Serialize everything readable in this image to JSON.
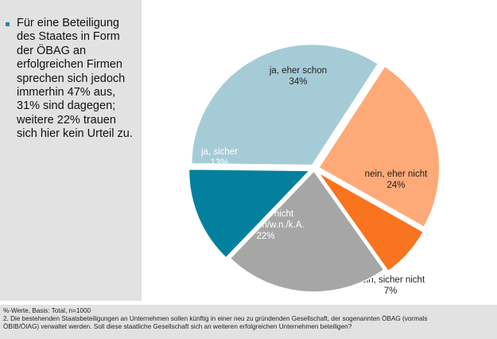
{
  "sidebar": {
    "bullet_lines": [
      "Für eine Beteiligung",
      "des Staates in Form",
      "der ÖBAG an",
      "erfolgreichen Firmen",
      "sprechen sich jedoch",
      "immerhin 47% aus,",
      "31% sind dagegen;",
      "weitere 22% trauen",
      "sich hier kein Urteil zu."
    ]
  },
  "footer": {
    "basis": "%-Werte, Basis: Total, n=1000",
    "question_line1": "2. Die bestehenden Staatsbeteiligungen an Unternehmen sollen künftig in einer neu zu gründenden Gesellschaft, der sogenannten ÖBAG (vormals",
    "question_line2": "ÖBIB/ÖIAG) verwaltet werden. Soll diese staatliche Gesellschaft sich an weiteren erfolgreichen Unternehmen beteiligen?"
  },
  "chart_data": {
    "type": "pie",
    "title": "",
    "slices": [
      {
        "label": "ja, eher schon",
        "value": 34,
        "display": "34%",
        "color": "#a5ccd6"
      },
      {
        "label": "nein, eher nicht",
        "value": 24,
        "display": "24%",
        "color": "#fdaa78"
      },
      {
        "label": "nein, sicher nicht",
        "value": 7,
        "display": "7%",
        "color": "#f8741e"
      },
      {
        "label": "kann ich nicht beurteilen/w.n./k.A.",
        "label_lines": [
          "kann ich nicht",
          "beurteilen/w.n./k.A."
        ],
        "value": 22,
        "display": "22%",
        "color": "#a6a6a6"
      },
      {
        "label": "ja, sicher",
        "value": 13,
        "display": "13%",
        "color": "#03809d"
      }
    ]
  }
}
